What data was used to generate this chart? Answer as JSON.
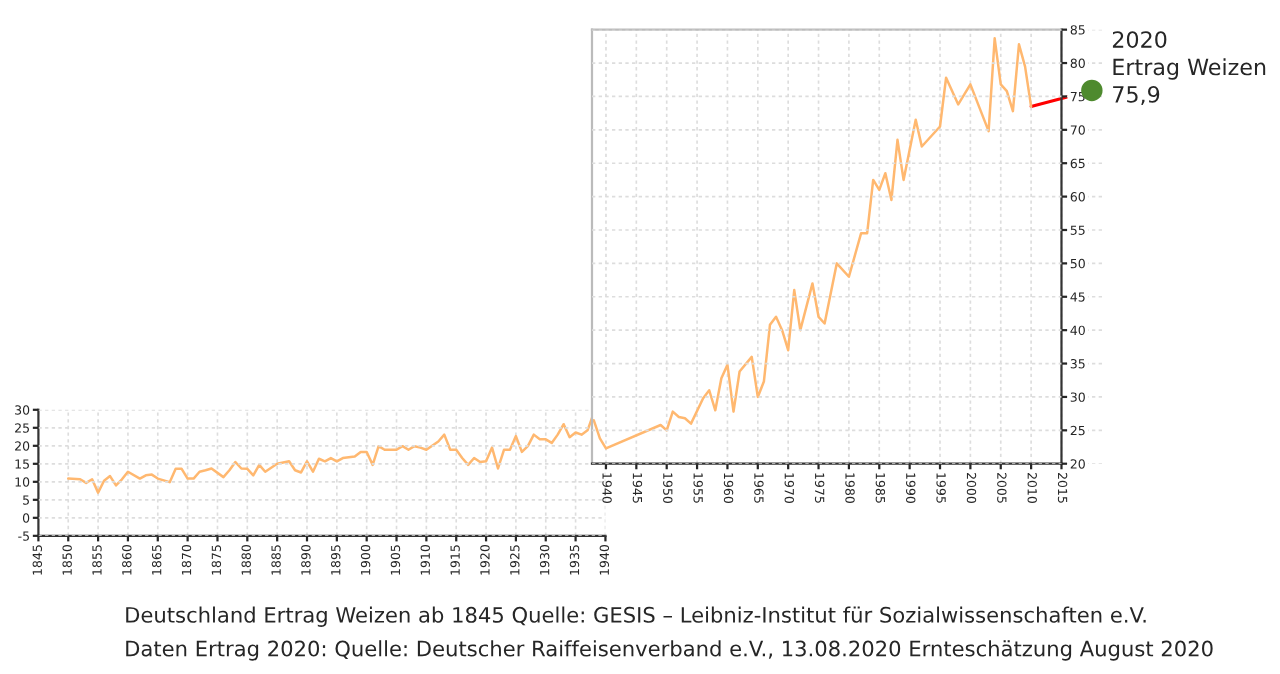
{
  "chart_data": [
    {
      "type": "line",
      "color": "#ffb870",
      "x": [
        1850,
        1852,
        1853,
        1854,
        1855,
        1856,
        1857,
        1858,
        1859,
        1860,
        1862,
        1863,
        1864,
        1865,
        1867,
        1868,
        1869,
        1870,
        1871,
        1872,
        1873,
        1874,
        1876,
        1877,
        1878,
        1879,
        1880,
        1881,
        1882,
        1883,
        1885,
        1887,
        1888,
        1889,
        1890,
        1891,
        1892,
        1893,
        1894,
        1895,
        1896,
        1898,
        1899,
        1900,
        1901,
        1902,
        1903,
        1905,
        1906,
        1907,
        1908,
        1909,
        1910,
        1912,
        1913,
        1914,
        1915,
        1916,
        1917,
        1918,
        1919,
        1920,
        1921,
        1922,
        1923,
        1924,
        1925,
        1926,
        1927,
        1928,
        1929,
        1930,
        1931,
        1932,
        1933,
        1934,
        1935,
        1936,
        1937,
        1938,
        1939,
        1940
      ],
      "values": [
        10.9,
        10.7,
        9.7,
        10.7,
        7,
        10.3,
        11.6,
        9,
        10.7,
        12.8,
        10.9,
        11.8,
        12,
        10.9,
        9.9,
        13.6,
        13.6,
        10.9,
        10.9,
        12.8,
        13.2,
        13.7,
        11.3,
        13.2,
        15.5,
        13.7,
        13.6,
        11.8,
        14.7,
        12.8,
        15,
        15.7,
        13.2,
        12.6,
        15.7,
        12.8,
        16.4,
        15.7,
        16.6,
        15.7,
        16.6,
        17,
        18.3,
        18.3,
        14.7,
        19.9,
        18.9,
        18.9,
        19.9,
        18.9,
        19.9,
        19.5,
        18.9,
        21.2,
        23.1,
        18.9,
        18.9,
        16.6,
        14.7,
        16.6,
        15.5,
        15.7,
        19.5,
        13.7,
        18.9,
        18.9,
        22.7,
        18.3,
        19.9,
        23.1,
        21.8,
        21.8,
        20.8,
        23.1,
        26,
        22.4,
        23.7,
        23.1,
        24.3,
        28.9,
        23.7,
        21
      ],
      "xlim": [
        1845,
        1940
      ],
      "xticks": [
        1845,
        1850,
        1855,
        1860,
        1865,
        1870,
        1875,
        1880,
        1885,
        1890,
        1895,
        1900,
        1905,
        1910,
        1915,
        1920,
        1925,
        1930,
        1935,
        1940
      ],
      "ylim": [
        -5,
        30
      ],
      "yticks": [
        -5,
        0,
        5,
        10,
        15,
        20,
        25,
        30
      ],
      "grid": true,
      "annotations": [
        "Deutschland Ertrag Weizen ab 1845 Quelle: GESIS – Leibniz-Institut für Sozialwissenschaften e.V.",
        "Daten Ertrag 2020: Quelle: Deutscher Raiffeisenverband e.V., 13.08.2020 Ernteschätzung August 2020"
      ]
    },
    {
      "type": "line",
      "series": [
        {
          "color": "#ffb870",
          "x": [
            1938,
            1939,
            1940,
            1949,
            1950,
            1951,
            1952,
            1953,
            1954,
            1956,
            1957,
            1958,
            1959,
            1960,
            1961,
            1962,
            1964,
            1965,
            1966,
            1967,
            1968,
            1969,
            1970,
            1971,
            1972,
            1974,
            1975,
            1976,
            1978,
            1980,
            1982,
            1983,
            1984,
            1985,
            1986,
            1987,
            1988,
            1989,
            1991,
            1992,
            1995,
            1996,
            1998,
            2000,
            2003,
            2004,
            2005,
            2006,
            2007,
            2008,
            2009,
            2010
          ],
          "values": [
            26.5,
            23.8,
            22.3,
            25.8,
            25,
            27.8,
            27,
            26.8,
            26,
            29.8,
            31,
            28,
            32.8,
            34.8,
            27.8,
            33.8,
            36,
            30,
            32.3,
            40.8,
            42,
            40,
            37,
            46,
            40,
            47,
            42,
            41,
            50,
            48,
            54.5,
            54.5,
            62.5,
            61,
            63.5,
            59.5,
            68.5,
            62.5,
            71.5,
            67.5,
            70.5,
            77.8,
            73.8,
            76.8,
            69.8,
            83.7,
            76.8,
            75.8,
            72.8,
            82.8,
            79.5,
            73.5
          ]
        },
        {
          "color": "#ff0000",
          "x": [
            2010,
            2020
          ],
          "values": [
            73.5,
            75.9
          ]
        },
        {
          "type": "scatter",
          "color": "#4e8a2e",
          "x": [
            2020
          ],
          "values": [
            75.9
          ]
        }
      ],
      "xlim": [
        1937.7,
        2022
      ],
      "xticks": [
        1940,
        1945,
        1950,
        1955,
        1960,
        1965,
        1970,
        1975,
        1980,
        1985,
        1990,
        1995,
        2000,
        2005,
        2010,
        2015
      ],
      "ylim": [
        20,
        85
      ],
      "yticks": [
        20,
        25,
        30,
        35,
        40,
        45,
        50,
        55,
        60,
        65,
        70,
        75,
        80,
        85
      ],
      "grid": true,
      "annotations": [
        "2020\nErtrag Weizen\n75,9"
      ]
    }
  ]
}
